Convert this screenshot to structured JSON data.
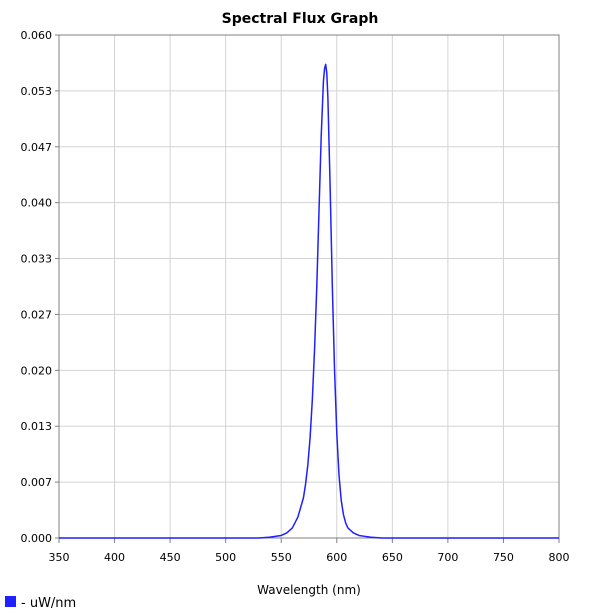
{
  "chart_data": {
    "type": "line",
    "title": "Spectral Flux Graph",
    "xlabel": "Wavelength (nm)",
    "ylabel": "",
    "xlim": [
      350,
      800
    ],
    "ylim": [
      0,
      0.06
    ],
    "x_ticks": [
      "350",
      "400",
      "450",
      "500",
      "550",
      "600",
      "650",
      "700",
      "750",
      "800"
    ],
    "y_ticks": [
      "0.000",
      "0.007",
      "0.013",
      "0.020",
      "0.027",
      "0.033",
      "0.040",
      "0.047",
      "0.053",
      "0.060"
    ],
    "grid": true,
    "legend_position": "bottom-left",
    "series": [
      {
        "name": "- uW/nm",
        "color": "#1f1fff",
        "x": [
          350,
          400,
          450,
          500,
          520,
          530,
          540,
          550,
          555,
          560,
          565,
          570,
          572,
          574,
          576,
          578,
          580,
          582,
          584,
          586,
          588,
          589,
          590,
          591,
          592,
          594,
          596,
          598,
          600,
          602,
          604,
          606,
          608,
          610,
          615,
          620,
          625,
          630,
          640,
          650,
          700,
          750,
          800
        ],
        "y": [
          0.0,
          0.0,
          0.0,
          0.0,
          0.0,
          0.0,
          0.0001,
          0.0003,
          0.0006,
          0.0012,
          0.0025,
          0.0048,
          0.0065,
          0.0088,
          0.012,
          0.0165,
          0.0225,
          0.03,
          0.039,
          0.048,
          0.0545,
          0.056,
          0.0565,
          0.0555,
          0.0525,
          0.042,
          0.03,
          0.02,
          0.0125,
          0.0075,
          0.0045,
          0.0028,
          0.0018,
          0.0012,
          0.0006,
          0.0003,
          0.0002,
          0.0001,
          0.0,
          0.0,
          0.0,
          0.0,
          0.0
        ]
      }
    ]
  }
}
